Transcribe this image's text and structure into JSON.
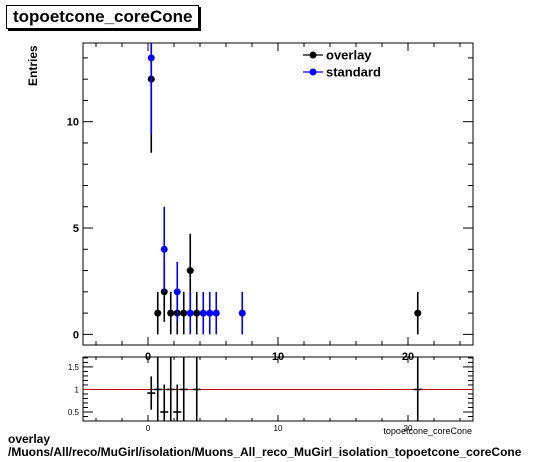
{
  "title": "topoetcone_coreCone",
  "caption": {
    "line1": "overlay",
    "line2": "/Muons/All/reco/MuGirl/isolation/Muons_All_reco_MuGirl_isolation_topoetcone_coreCone"
  },
  "chart_data": [
    {
      "type": "scatter",
      "title": "topoetcone_coreCone",
      "xlabel": "topoetcone_coreCone",
      "ylabel": "Entries",
      "xlim": [
        -5,
        25
      ],
      "ylim": [
        -0.5,
        13.7
      ],
      "x_ticks": [
        0,
        10,
        20
      ],
      "y_ticks": [
        0,
        5,
        10
      ],
      "legend_position": "top-right",
      "grid": false,
      "series": [
        {
          "name": "overlay",
          "color": "#000000",
          "points": [
            {
              "x": 0.25,
              "y": 12,
              "err": 3.46
            },
            {
              "x": 0.75,
              "y": 1,
              "err": 1
            },
            {
              "x": 1.25,
              "y": 2,
              "err": 1.41
            },
            {
              "x": 1.75,
              "y": 1,
              "err": 1
            },
            {
              "x": 2.25,
              "y": 1,
              "err": 1
            },
            {
              "x": 2.75,
              "y": 1,
              "err": 1
            },
            {
              "x": 3.25,
              "y": 3,
              "err": 1.73
            },
            {
              "x": 3.75,
              "y": 1,
              "err": 1
            },
            {
              "x": 20.75,
              "y": 1,
              "err": 1
            }
          ]
        },
        {
          "name": "standard",
          "color": "#0000ff",
          "points": [
            {
              "x": 0.25,
              "y": 13,
              "err": 3.61
            },
            {
              "x": 1.25,
              "y": 4,
              "err": 2
            },
            {
              "x": 2.25,
              "y": 2,
              "err": 1.41
            },
            {
              "x": 3.25,
              "y": 1,
              "err": 1
            },
            {
              "x": 4.25,
              "y": 1,
              "err": 1
            },
            {
              "x": 4.75,
              "y": 1,
              "err": 1
            },
            {
              "x": 5.25,
              "y": 1,
              "err": 1
            },
            {
              "x": 7.25,
              "y": 1,
              "err": 1
            }
          ]
        }
      ]
    },
    {
      "type": "scatter",
      "title": "",
      "xlabel": "",
      "ylabel": "",
      "xlim": [
        -5,
        25
      ],
      "ylim": [
        0.3,
        1.72
      ],
      "x_ticks": [
        0,
        10,
        20
      ],
      "y_ticks": [
        0.5,
        1,
        1.5
      ],
      "reference_line": {
        "y": 1,
        "color": "#cc0000"
      },
      "series": [
        {
          "name": "",
          "color": "#000000",
          "points": [
            {
              "x": 0.25,
              "y": 0.92,
              "err": 0.37
            },
            {
              "x": 0.75,
              "y": 1.0,
              "err": 1.4
            },
            {
              "x": 1.25,
              "y": 0.5,
              "err": 0.61
            },
            {
              "x": 1.75,
              "y": 1.0,
              "err": 1.4
            },
            {
              "x": 2.25,
              "y": 0.5,
              "err": 0.61
            },
            {
              "x": 2.75,
              "y": 1.0,
              "err": 1.4
            },
            {
              "x": 3.75,
              "y": 1.0,
              "err": 1.4
            },
            {
              "x": 20.75,
              "y": 1.0,
              "err": 1.4
            }
          ]
        }
      ]
    }
  ]
}
